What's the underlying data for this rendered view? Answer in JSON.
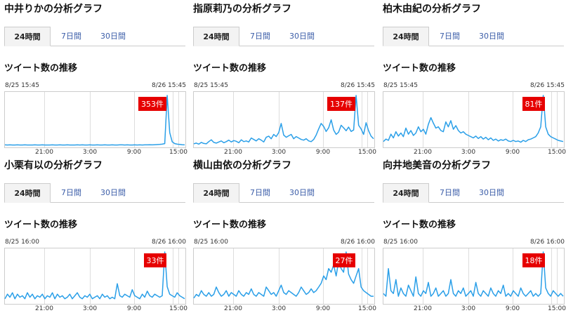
{
  "tabs": [
    "24時間",
    "7日間",
    "30日間"
  ],
  "subtitle": "ツイート数の推移",
  "colors": {
    "line": "#2a9fe8",
    "badge_bg": "#e60000",
    "grid": "#dddddd",
    "tab_link": "#3b5da8"
  },
  "panels": [
    {
      "title": "中井りかの分析グラフ",
      "start_label": "8/25 15:45",
      "end_label": "8/26 15:45",
      "peak_label": "353件",
      "chart_data": {
        "type": "line",
        "x_ticks": [
          "21:00",
          "3:00",
          "9:00",
          "15:00"
        ],
        "values": [
          3,
          2,
          3,
          2,
          2,
          3,
          2,
          2,
          3,
          2,
          2,
          2,
          3,
          2,
          2,
          3,
          2,
          2,
          2,
          3,
          2,
          2,
          3,
          2,
          2,
          3,
          2,
          2,
          2,
          3,
          2,
          3,
          2,
          2,
          3,
          2,
          2,
          3,
          2,
          2,
          3,
          2,
          2,
          3,
          2,
          2,
          3,
          3,
          2,
          3,
          2,
          2,
          3,
          2,
          3,
          2,
          3,
          3,
          4,
          3,
          4,
          5,
          6,
          8,
          12,
          353,
          90,
          25,
          12,
          8,
          6,
          4,
          3
        ]
      }
    },
    {
      "title": "指原莉乃の分析グラフ",
      "start_label": "8/25 15:45",
      "end_label": "8/26 15:45",
      "peak_label": "137件",
      "chart_data": {
        "type": "line",
        "x_ticks": [
          "21:00",
          "3:00",
          "9:00",
          "15:00"
        ],
        "values": [
          4,
          6,
          3,
          8,
          5,
          4,
          10,
          15,
          8,
          6,
          9,
          12,
          7,
          10,
          14,
          9,
          13,
          11,
          7,
          15,
          10,
          12,
          9,
          20,
          16,
          12,
          18,
          14,
          9,
          22,
          25,
          18,
          30,
          24,
          35,
          60,
          28,
          22,
          26,
          30,
          18,
          24,
          20,
          16,
          14,
          18,
          12,
          10,
          16,
          28,
          45,
          60,
          52,
          38,
          48,
          70,
          42,
          30,
          36,
          55,
          48,
          40,
          50,
          38,
          42,
          137,
          55,
          45,
          30,
          62,
          40,
          25,
          18
        ]
      }
    },
    {
      "title": "柏木由紀の分析グラフ",
      "start_label": "8/25 15:45",
      "end_label": "8/26 15:45",
      "peak_label": "81件",
      "chart_data": {
        "type": "line",
        "x_ticks": [
          "21:00",
          "3:00",
          "9:00",
          "15:00"
        ],
        "values": [
          6,
          10,
          8,
          18,
          12,
          22,
          15,
          20,
          14,
          28,
          18,
          24,
          16,
          20,
          30,
          22,
          26,
          18,
          34,
          45,
          36,
          28,
          30,
          24,
          22,
          38,
          30,
          40,
          26,
          32,
          24,
          20,
          22,
          18,
          16,
          14,
          12,
          15,
          11,
          14,
          10,
          13,
          9,
          12,
          8,
          10,
          7,
          9,
          8,
          10,
          7,
          6,
          8,
          6,
          7,
          5,
          8,
          6,
          9,
          10,
          12,
          14,
          20,
          30,
          81,
          30,
          18,
          14,
          12,
          10,
          8,
          7,
          6
        ]
      }
    },
    {
      "title": "小栗有以の分析グラフ",
      "start_label": "8/25 16:00",
      "end_label": "8/26 16:00",
      "peak_label": "33件",
      "chart_data": {
        "type": "line",
        "x_ticks": [
          "21:00",
          "3:00",
          "9:00",
          "15:00"
        ],
        "values": [
          2,
          5,
          3,
          6,
          2,
          5,
          3,
          4,
          2,
          6,
          3,
          5,
          2,
          4,
          3,
          5,
          2,
          4,
          3,
          6,
          2,
          5,
          3,
          4,
          2,
          3,
          5,
          2,
          4,
          6,
          3,
          2,
          4,
          3,
          5,
          2,
          3,
          4,
          2,
          5,
          3,
          4,
          2,
          3,
          2,
          12,
          4,
          3,
          5,
          4,
          3,
          8,
          4,
          3,
          2,
          5,
          3,
          7,
          4,
          3,
          5,
          4,
          3,
          4,
          33,
          10,
          5,
          4,
          3,
          6,
          4,
          3,
          2
        ]
      }
    },
    {
      "title": "横山由依の分析グラフ",
      "start_label": "8/25 16:00",
      "end_label": "8/26 16:00",
      "peak_label": "27件",
      "chart_data": {
        "type": "line",
        "x_ticks": [
          "21:00",
          "3:00",
          "9:00",
          "15:00"
        ],
        "values": [
          2,
          4,
          3,
          6,
          4,
          3,
          5,
          3,
          4,
          8,
          5,
          3,
          4,
          6,
          3,
          5,
          4,
          3,
          6,
          4,
          3,
          5,
          4,
          7,
          4,
          3,
          5,
          4,
          3,
          8,
          6,
          4,
          5,
          3,
          6,
          9,
          5,
          4,
          6,
          5,
          4,
          3,
          5,
          8,
          6,
          4,
          5,
          7,
          5,
          6,
          8,
          10,
          14,
          12,
          18,
          16,
          20,
          14,
          22,
          18,
          16,
          27,
          15,
          12,
          10,
          14,
          18,
          8,
          6,
          5,
          4,
          3,
          3
        ]
      }
    },
    {
      "title": "向井地美音の分析グラフ",
      "start_label": "8/25 16:00",
      "end_label": "8/26 16:00",
      "peak_label": "18件",
      "chart_data": {
        "type": "line",
        "x_ticks": [
          "21:00",
          "3:00",
          "9:00",
          "15:00"
        ],
        "values": [
          3,
          2,
          12,
          4,
          3,
          8,
          2,
          5,
          3,
          2,
          6,
          4,
          2,
          9,
          3,
          2,
          4,
          3,
          7,
          2,
          3,
          5,
          2,
          3,
          4,
          2,
          3,
          8,
          3,
          2,
          4,
          3,
          5,
          2,
          3,
          4,
          2,
          7,
          3,
          2,
          4,
          3,
          2,
          5,
          3,
          2,
          4,
          3,
          6,
          2,
          3,
          2,
          4,
          3,
          2,
          5,
          3,
          2,
          3,
          4,
          2,
          3,
          2,
          3,
          18,
          5,
          3,
          2,
          4,
          3,
          2,
          3,
          2
        ]
      }
    }
  ]
}
